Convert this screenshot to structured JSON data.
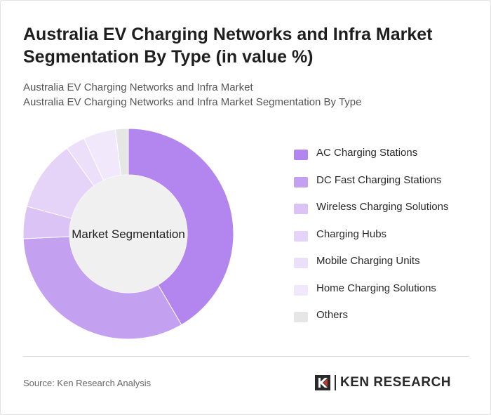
{
  "title": "Australia EV Charging Networks and Infra Market Segmentation By Type (in value %)",
  "subtitle_line1": "Australia EV Charging Networks and Infra Market",
  "subtitle_line2": "Australia EV Charging Networks and Infra Market Segmentation By Type",
  "source": "Source: Ken Research Analysis",
  "brand": "KEN RESEARCH",
  "chart_data": {
    "type": "pie",
    "center_label": "Market Segmentation",
    "categories": [
      "AC Charging Stations",
      "DC Fast Charging Stations",
      "Wireless Charging Solutions",
      "Charging Hubs",
      "Mobile Charging Units",
      "Home Charging Solutions",
      "Others"
    ],
    "values": [
      42,
      33,
      5,
      11,
      3,
      5,
      2
    ],
    "colors": [
      "#b385ee",
      "#c4a0f0",
      "#dbc3f6",
      "#e5d3f8",
      "#ecdff9",
      "#f1e9fb",
      "#e6e6e6"
    ],
    "legend_position": "right"
  }
}
